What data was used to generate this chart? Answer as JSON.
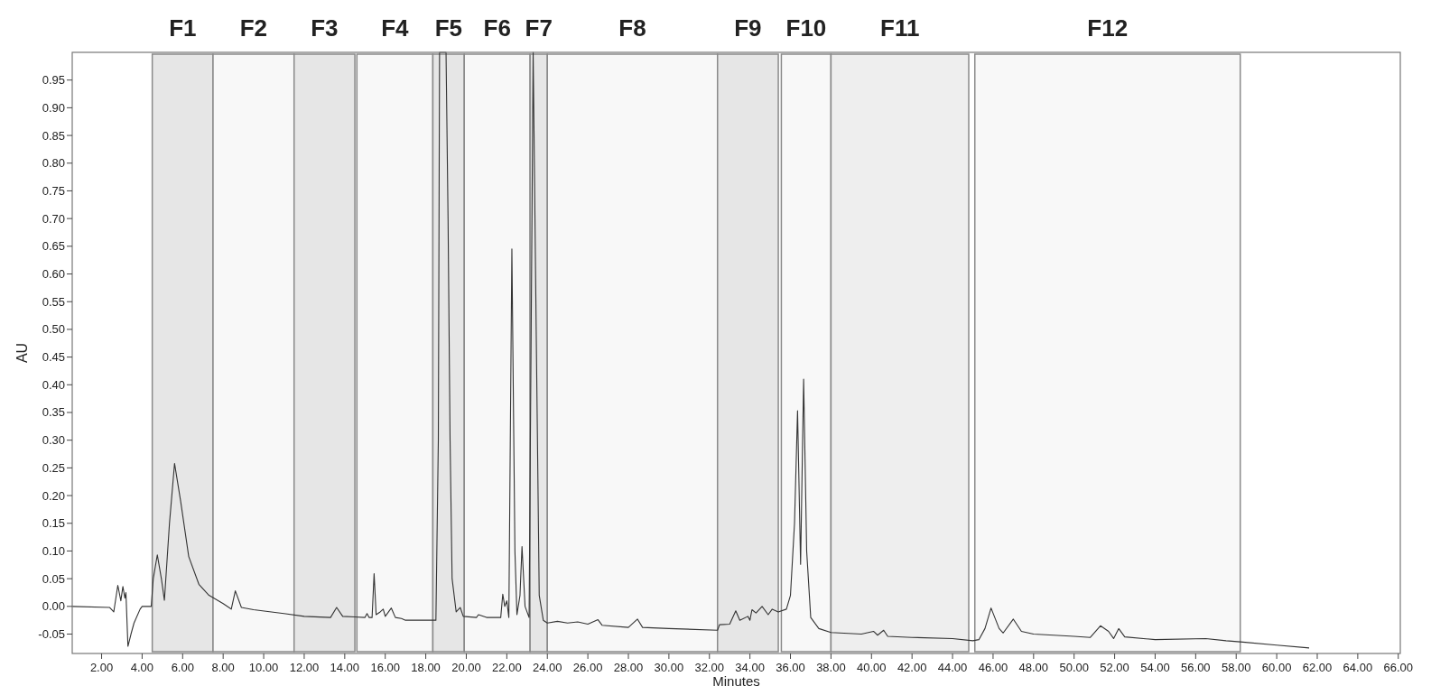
{
  "chart_data": {
    "type": "line",
    "xlabel": "Minutes",
    "ylabel": "AU",
    "xlim": [
      0.55,
      66.1
    ],
    "ylim": [
      -0.085,
      1.0
    ],
    "xticks": [
      {
        "value": 2,
        "label": "2.00"
      },
      {
        "value": 4,
        "label": "4.00"
      },
      {
        "value": 6,
        "label": "6.00"
      },
      {
        "value": 8,
        "label": "8.00"
      },
      {
        "value": 10,
        "label": "10.00"
      },
      {
        "value": 12,
        "label": "12.00"
      },
      {
        "value": 14,
        "label": "14.00"
      },
      {
        "value": 16,
        "label": "16.00"
      },
      {
        "value": 18,
        "label": "18.00"
      },
      {
        "value": 20,
        "label": "20.00"
      },
      {
        "value": 22,
        "label": "22.00"
      },
      {
        "value": 24,
        "label": "24.00"
      },
      {
        "value": 26,
        "label": "26.00"
      },
      {
        "value": 28,
        "label": "28.00"
      },
      {
        "value": 30,
        "label": "30.00"
      },
      {
        "value": 32,
        "label": "32.00"
      },
      {
        "value": 34,
        "label": "34.00"
      },
      {
        "value": 36,
        "label": "36.00"
      },
      {
        "value": 38,
        "label": "38.00"
      },
      {
        "value": 40,
        "label": "40.00"
      },
      {
        "value": 42,
        "label": "42.00"
      },
      {
        "value": 44,
        "label": "44.00"
      },
      {
        "value": 46,
        "label": "46.00"
      },
      {
        "value": 48,
        "label": "48.00"
      },
      {
        "value": 50,
        "label": "50.00"
      },
      {
        "value": 52,
        "label": "52.00"
      },
      {
        "value": 54,
        "label": "54.00"
      },
      {
        "value": 56,
        "label": "56.00"
      },
      {
        "value": 58,
        "label": "58.00"
      },
      {
        "value": 60,
        "label": "60.00"
      },
      {
        "value": 62,
        "label": "62.00"
      },
      {
        "value": 64,
        "label": "64.00"
      },
      {
        "value": 66,
        "label": "66.00"
      }
    ],
    "yticks": [
      {
        "value": -0.05,
        "label": "-0.05"
      },
      {
        "value": 0,
        "label": "0.00"
      },
      {
        "value": 0.05,
        "label": "0.05"
      },
      {
        "value": 0.1,
        "label": "0.10"
      },
      {
        "value": 0.15,
        "label": "0.15"
      },
      {
        "value": 0.2,
        "label": "0.20"
      },
      {
        "value": 0.25,
        "label": "0.25"
      },
      {
        "value": 0.3,
        "label": "0.30"
      },
      {
        "value": 0.35,
        "label": "0.35"
      },
      {
        "value": 0.4,
        "label": "0.40"
      },
      {
        "value": 0.45,
        "label": "0.45"
      },
      {
        "value": 0.5,
        "label": "0.50"
      },
      {
        "value": 0.55,
        "label": "0.55"
      },
      {
        "value": 0.6,
        "label": "0.60"
      },
      {
        "value": 0.65,
        "label": "0.65"
      },
      {
        "value": 0.7,
        "label": "0.70"
      },
      {
        "value": 0.75,
        "label": "0.75"
      },
      {
        "value": 0.8,
        "label": "0.80"
      },
      {
        "value": 0.85,
        "label": "0.85"
      },
      {
        "value": 0.9,
        "label": "0.90"
      },
      {
        "value": 0.95,
        "label": "0.95"
      }
    ],
    "bands": [
      {
        "axis": "x",
        "from": 4.5,
        "to": 7.5,
        "label": "F1",
        "color": "#e6e6e6"
      },
      {
        "axis": "x",
        "from": 7.5,
        "to": 11.5,
        "label": "F2",
        "color": "#f8f8f8"
      },
      {
        "axis": "x",
        "from": 11.5,
        "to": 14.5,
        "label": "F3",
        "color": "#e6e6e6"
      },
      {
        "axis": "x",
        "from": 14.6,
        "to": 18.35,
        "label": "F4",
        "color": "#f8f8f8"
      },
      {
        "axis": "x",
        "from": 18.35,
        "to": 19.9,
        "label": "F5",
        "color": "#e6e6e6"
      },
      {
        "axis": "x",
        "from": 19.9,
        "to": 23.15,
        "label": "F6",
        "color": "#f8f8f8"
      },
      {
        "axis": "x",
        "from": 23.15,
        "to": 24.0,
        "label": "F7",
        "color": "#e6e6e6"
      },
      {
        "axis": "x",
        "from": 24.0,
        "to": 32.4,
        "label": "F8",
        "color": "#f8f8f8"
      },
      {
        "axis": "x",
        "from": 32.4,
        "to": 35.4,
        "label": "F9",
        "color": "#e6e6e6"
      },
      {
        "axis": "x",
        "from": 35.55,
        "to": 38.0,
        "label": "F10",
        "color": "#f8f8f8"
      },
      {
        "axis": "x",
        "from": 38.0,
        "to": 44.8,
        "label": "F11",
        "color": "#eeeeee"
      },
      {
        "axis": "x",
        "from": 45.1,
        "to": 58.2,
        "label": "F12",
        "color": "#f8f8f8"
      }
    ],
    "series": [
      {
        "color": "#333333",
        "x": [
          0.55,
          2.4,
          2.6,
          2.8,
          2.95,
          3.05,
          3.15,
          3.2,
          3.3,
          3.45,
          3.6,
          3.9,
          4.0,
          4.45,
          4.55,
          4.75,
          4.95,
          5.1,
          5.35,
          5.6,
          5.9,
          6.3,
          6.8,
          7.3,
          8.0,
          8.4,
          8.6,
          8.9,
          9.5,
          11.0,
          12.0,
          13.3,
          13.6,
          13.9,
          14.5,
          15.0,
          15.1,
          15.2,
          15.35,
          15.45,
          15.55,
          15.75,
          15.9,
          16.0,
          16.3,
          16.5,
          16.8,
          17.0,
          18.5,
          18.62,
          18.68,
          19.0,
          19.1,
          19.2,
          19.3,
          19.5,
          19.7,
          19.85,
          20.5,
          20.6,
          21.0,
          21.7,
          21.8,
          21.9,
          22.0,
          22.1,
          22.25,
          22.4,
          22.5,
          22.65,
          22.75,
          22.9,
          23.1,
          23.3,
          23.45,
          23.6,
          23.8,
          24.0,
          24.5,
          25.0,
          25.5,
          26.0,
          26.5,
          26.7,
          28.0,
          28.45,
          28.7,
          30.0,
          32.4,
          32.5,
          33.0,
          33.3,
          33.5,
          33.9,
          34.0,
          34.1,
          34.3,
          34.6,
          34.9,
          35.1,
          35.4,
          35.8,
          36.0,
          36.2,
          36.35,
          36.5,
          36.65,
          36.8,
          37.0,
          37.4,
          38.0,
          39.5,
          40.1,
          40.3,
          40.6,
          40.8,
          42.0,
          44.0,
          45.0,
          45.3,
          45.6,
          45.9,
          46.3,
          46.5,
          47.0,
          47.4,
          48.0,
          50.0,
          50.8,
          51.3,
          51.7,
          51.95,
          52.2,
          52.5,
          54.0,
          56.5,
          57.5,
          58.2,
          60.0,
          61.6
        ],
        "values": [
          0.0,
          -0.002,
          -0.01,
          0.038,
          0.01,
          0.036,
          0.015,
          0.025,
          -0.072,
          -0.05,
          -0.03,
          -0.005,
          0.0,
          0.0,
          0.05,
          0.093,
          0.05,
          0.011,
          0.15,
          0.258,
          0.19,
          0.09,
          0.04,
          0.02,
          0.005,
          -0.005,
          0.028,
          -0.002,
          -0.006,
          -0.013,
          -0.018,
          -0.02,
          -0.002,
          -0.018,
          -0.019,
          -0.02,
          -0.013,
          -0.02,
          -0.02,
          0.059,
          -0.015,
          -0.01,
          -0.005,
          -0.018,
          -0.003,
          -0.02,
          -0.022,
          -0.025,
          -0.025,
          0.3,
          1.0,
          1.0,
          0.7,
          0.3,
          0.05,
          -0.01,
          -0.002,
          -0.018,
          -0.02,
          -0.015,
          -0.02,
          -0.02,
          0.022,
          0.0,
          0.01,
          -0.02,
          0.645,
          0.1,
          -0.015,
          0.02,
          0.108,
          0.0,
          -0.02,
          1.0,
          0.5,
          0.02,
          -0.025,
          -0.03,
          -0.027,
          -0.03,
          -0.028,
          -0.032,
          -0.024,
          -0.034,
          -0.038,
          -0.023,
          -0.038,
          -0.04,
          -0.043,
          -0.033,
          -0.032,
          -0.008,
          -0.025,
          -0.018,
          -0.025,
          -0.006,
          -0.012,
          0.0,
          -0.015,
          -0.005,
          -0.01,
          -0.005,
          0.02,
          0.15,
          0.353,
          0.076,
          0.41,
          0.1,
          -0.02,
          -0.04,
          -0.047,
          -0.05,
          -0.045,
          -0.052,
          -0.043,
          -0.054,
          -0.056,
          -0.058,
          -0.062,
          -0.06,
          -0.04,
          -0.003,
          -0.04,
          -0.048,
          -0.023,
          -0.045,
          -0.05,
          -0.054,
          -0.056,
          -0.035,
          -0.045,
          -0.058,
          -0.04,
          -0.055,
          -0.06,
          -0.058,
          -0.062,
          -0.064,
          -0.07,
          -0.075
        ]
      }
    ]
  }
}
